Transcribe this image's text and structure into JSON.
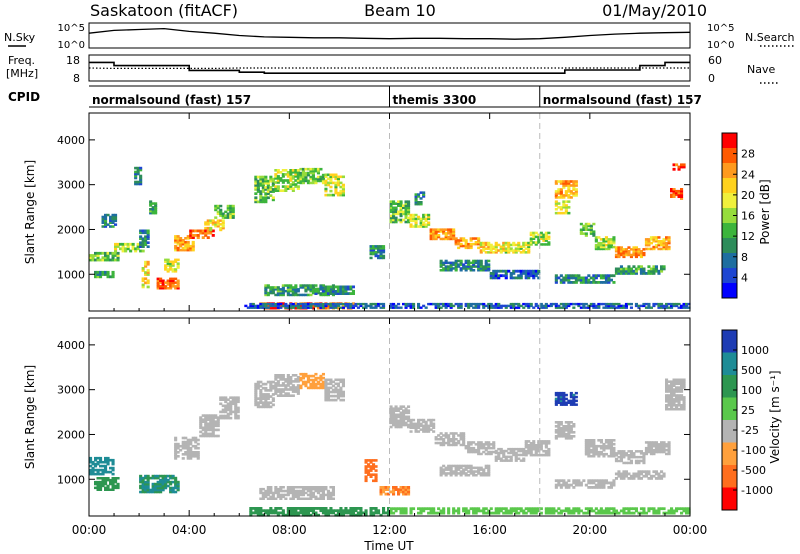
{
  "header": {
    "station": "Saskatoon (fitACF)",
    "beam": "Beam 10",
    "date": "01/May/2010"
  },
  "noise_panel": {
    "left_label": "N.Sky",
    "right_label": "N.Search",
    "left_ticks": [
      "10^5",
      "10^0"
    ],
    "right_ticks": [
      "10^5",
      "10^0"
    ]
  },
  "freq_panel": {
    "left_label_1": "Freq.",
    "left_label_2": "[MHz]",
    "right_label": "Nave",
    "left_ticks": [
      "18",
      "8"
    ],
    "right_ticks": [
      "60",
      "0"
    ]
  },
  "cpid_panel": {
    "label": "CPID",
    "segments": [
      {
        "name": "normalsound (fast) 157",
        "start": 0,
        "end": 12
      },
      {
        "name": "themis 3300",
        "start": 12,
        "end": 18
      },
      {
        "name": "normalsound (fast) 157",
        "start": 18,
        "end": 24
      }
    ]
  },
  "power_panel": {
    "ylabel": "Slant Range [km]",
    "colorbar_label": "Power [dB]",
    "colorbar_ticks": [
      "28",
      "24",
      "20",
      "16",
      "12",
      "8",
      "4"
    ],
    "colors": [
      "#ff0000",
      "#ff5a00",
      "#ff9a1e",
      "#ffd21e",
      "#f0f03c",
      "#96dc3c",
      "#3cb43c",
      "#2d8c5a",
      "#1e6ea0",
      "#1e46d2",
      "#0000ff"
    ]
  },
  "velocity_panel": {
    "ylabel": "Slant Range [km]",
    "colorbar_label": "Velocity [m s⁻¹]",
    "colorbar_ticks": [
      "1000",
      "500",
      "100",
      "25",
      "-25",
      "-100",
      "-500",
      "-1000"
    ],
    "colors": [
      "#1e3cb4",
      "#1e8c96",
      "#2d9650",
      "#5ac84b",
      "#b4b4b4",
      "#ffa03c",
      "#ff6e1e",
      "#ff0000"
    ]
  },
  "chart_data": [
    {
      "type": "line",
      "title": "N.Sky / N.Search",
      "x": [
        0,
        1,
        2,
        3,
        4,
        5,
        6,
        7,
        8,
        9,
        10,
        11,
        12,
        13,
        14,
        15,
        16,
        17,
        18,
        19,
        20,
        21,
        22,
        23,
        24
      ],
      "series": [
        {
          "name": "N.Sky",
          "values": [
            3.0,
            3.6,
            3.8,
            4.0,
            3.4,
            3.0,
            2.5,
            2.2,
            2.1,
            2.0,
            2.0,
            1.9,
            1.8,
            1.9,
            1.9,
            1.8,
            1.8,
            1.7,
            1.8,
            2.1,
            2.5,
            2.8,
            3.0,
            3.1,
            3.2
          ]
        }
      ],
      "ylim": [
        0,
        5
      ]
    },
    {
      "type": "line",
      "title": "Freq. / Nave",
      "x": [
        0,
        1,
        2,
        3,
        4,
        5,
        6,
        7,
        8,
        9,
        10,
        11,
        12,
        13,
        14,
        15,
        16,
        17,
        18,
        19,
        20,
        21,
        22,
        23,
        24
      ],
      "series": [
        {
          "name": "Freq.",
          "values": [
            15.8,
            14.2,
            14.2,
            14.2,
            11.8,
            11.8,
            10.9,
            10.4,
            10.4,
            10.4,
            10.4,
            10.4,
            10.4,
            10.4,
            10.4,
            10.4,
            10.4,
            10.4,
            10.4,
            12.0,
            12.0,
            12.0,
            14.2,
            15.8,
            15.8
          ]
        },
        {
          "name": "Nave",
          "values": [
            30,
            29,
            29,
            29,
            29,
            29,
            30,
            30,
            30,
            30,
            30,
            30,
            30,
            30,
            30,
            30,
            30,
            30,
            30,
            30,
            30,
            30,
            30,
            30,
            30
          ]
        }
      ],
      "ylim": [
        8,
        18
      ]
    },
    {
      "type": "heatmap",
      "title": "Power [dB]",
      "xlabel": "Time UT",
      "ylabel": "Slant Range [km]",
      "x_ticks": [
        "00:00",
        "04:00",
        "08:00",
        "12:00",
        "16:00",
        "20:00",
        "00:00"
      ],
      "y_ticks": [
        1000,
        2000,
        3000,
        4000
      ],
      "xlim": [
        0,
        24
      ],
      "ylim": [
        180,
        4600
      ],
      "cells": [
        [
          0.0,
          1400,
          1.2,
          200,
          14
        ],
        [
          0.2,
          1000,
          0.8,
          150,
          12
        ],
        [
          0.5,
          2200,
          0.6,
          300,
          10
        ],
        [
          1.0,
          1600,
          1.2,
          200,
          16
        ],
        [
          2.0,
          1800,
          0.4,
          400,
          10
        ],
        [
          2.1,
          1000,
          0.3,
          600,
          20
        ],
        [
          2.7,
          800,
          0.9,
          250,
          26
        ],
        [
          3.0,
          1200,
          0.6,
          300,
          18
        ],
        [
          3.4,
          1700,
          0.8,
          350,
          22
        ],
        [
          4.0,
          1900,
          1.0,
          200,
          26
        ],
        [
          4.6,
          2100,
          0.8,
          250,
          20
        ],
        [
          5.0,
          2400,
          0.8,
          300,
          14
        ],
        [
          1.8,
          3200,
          0.3,
          400,
          10
        ],
        [
          2.4,
          2500,
          0.3,
          300,
          12
        ],
        [
          6.6,
          2900,
          0.8,
          600,
          14
        ],
        [
          7.4,
          3100,
          1.0,
          500,
          16
        ],
        [
          8.4,
          3200,
          1.0,
          350,
          14
        ],
        [
          9.4,
          3000,
          0.8,
          500,
          18
        ],
        [
          6.8,
          300,
          1.2,
          150,
          28
        ],
        [
          8.0,
          300,
          1.4,
          150,
          28
        ],
        [
          9.4,
          300,
          1.2,
          150,
          24
        ],
        [
          7.0,
          650,
          2.8,
          250,
          12
        ],
        [
          9.0,
          650,
          1.6,
          200,
          10
        ],
        [
          6.2,
          300,
          5.6,
          120,
          8
        ],
        [
          11.2,
          1500,
          0.6,
          300,
          10
        ],
        [
          12.0,
          2400,
          0.8,
          500,
          14
        ],
        [
          12.8,
          2200,
          0.8,
          300,
          18
        ],
        [
          13.6,
          1900,
          1.0,
          250,
          24
        ],
        [
          14.6,
          1700,
          1.0,
          250,
          24
        ],
        [
          15.6,
          1600,
          1.0,
          250,
          20
        ],
        [
          16.6,
          1600,
          1.0,
          250,
          18
        ],
        [
          17.6,
          1800,
          0.8,
          300,
          16
        ],
        [
          13.0,
          2700,
          0.4,
          300,
          10
        ],
        [
          14.0,
          1200,
          2.0,
          250,
          10
        ],
        [
          16.0,
          1000,
          2.0,
          200,
          8
        ],
        [
          12.0,
          300,
          6.0,
          120,
          8
        ],
        [
          18.6,
          2900,
          0.9,
          400,
          22
        ],
        [
          18.6,
          2500,
          0.6,
          300,
          18
        ],
        [
          19.6,
          2000,
          0.6,
          300,
          14
        ],
        [
          20.2,
          1700,
          0.8,
          300,
          16
        ],
        [
          21.0,
          1500,
          1.2,
          250,
          24
        ],
        [
          22.2,
          1700,
          1.0,
          300,
          22
        ],
        [
          23.2,
          2800,
          0.5,
          250,
          28
        ],
        [
          23.3,
          3400,
          0.5,
          150,
          28
        ],
        [
          18.6,
          900,
          2.4,
          200,
          10
        ],
        [
          21.0,
          1100,
          2.0,
          200,
          12
        ],
        [
          18.0,
          300,
          6.0,
          120,
          8
        ]
      ]
    },
    {
      "type": "heatmap",
      "title": "Velocity [m s⁻¹]",
      "xlabel": "Time UT",
      "ylabel": "Slant Range [km]",
      "x_ticks": [
        "00:00",
        "04:00",
        "08:00",
        "12:00",
        "16:00",
        "20:00",
        "00:00"
      ],
      "y_ticks": [
        1000,
        2000,
        3000,
        4000
      ],
      "xlim": [
        0,
        24
      ],
      "ylim": [
        180,
        4600
      ],
      "cells": [
        [
          0.0,
          1300,
          1.0,
          400,
          500
        ],
        [
          0.2,
          900,
          1.0,
          300,
          100
        ],
        [
          2.0,
          900,
          1.6,
          400,
          300
        ],
        [
          3.4,
          1700,
          1.0,
          500,
          0
        ],
        [
          4.4,
          2200,
          0.8,
          500,
          0
        ],
        [
          5.2,
          2600,
          0.8,
          500,
          0
        ],
        [
          6.6,
          2900,
          0.8,
          600,
          0
        ],
        [
          7.4,
          3100,
          1.0,
          500,
          0
        ],
        [
          8.4,
          3200,
          1.0,
          350,
          -40
        ],
        [
          9.4,
          3000,
          0.8,
          500,
          0
        ],
        [
          6.8,
          700,
          3.0,
          300,
          0
        ],
        [
          6.4,
          280,
          5.6,
          200,
          100
        ],
        [
          11.0,
          1200,
          0.5,
          500,
          -200
        ],
        [
          11.6,
          750,
          1.2,
          200,
          -100
        ],
        [
          12.0,
          2400,
          0.8,
          500,
          0
        ],
        [
          12.8,
          2200,
          1.0,
          300,
          0
        ],
        [
          13.8,
          1900,
          1.2,
          300,
          0
        ],
        [
          15.0,
          1700,
          1.2,
          300,
          0
        ],
        [
          16.2,
          1550,
          1.2,
          300,
          0
        ],
        [
          17.4,
          1700,
          1.0,
          350,
          0
        ],
        [
          14.0,
          1200,
          2.0,
          250,
          0
        ],
        [
          12.0,
          300,
          6.0,
          150,
          50
        ],
        [
          18.0,
          300,
          6.0,
          150,
          40
        ],
        [
          18.6,
          2800,
          0.9,
          300,
          900
        ],
        [
          18.6,
          2100,
          0.8,
          400,
          0
        ],
        [
          19.8,
          1700,
          1.2,
          400,
          0
        ],
        [
          21.0,
          1500,
          1.2,
          300,
          0
        ],
        [
          22.2,
          1700,
          1.0,
          300,
          0
        ],
        [
          23.0,
          2900,
          0.8,
          700,
          0
        ],
        [
          18.6,
          900,
          2.4,
          200,
          0
        ],
        [
          21.0,
          1100,
          2.0,
          200,
          0
        ]
      ]
    }
  ]
}
